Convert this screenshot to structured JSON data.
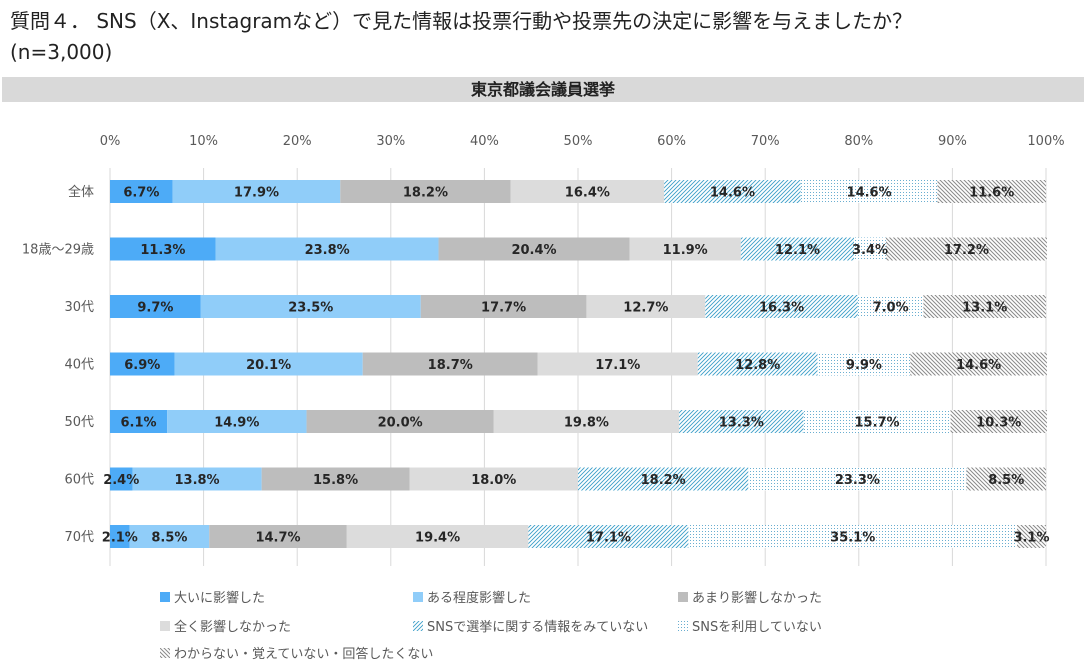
{
  "title_lines": [
    "質問４． SNS（X、Instagramなど）で見た情報は投票行動や投票先の決定に影響を与えましたか？",
    "(n=3,000)"
  ],
  "banner": "東京都議会議員選挙",
  "chart_data": {
    "type": "bar",
    "orientation": "horizontal",
    "stacked": true,
    "percent": true,
    "categories": [
      "全体",
      "18歳～29歳",
      "30代",
      "40代",
      "50代",
      "60代",
      "70代"
    ],
    "series": [
      {
        "name": "大いに影響した",
        "values": [
          6.7,
          11.3,
          9.7,
          6.9,
          6.1,
          2.4,
          2.1
        ]
      },
      {
        "name": "ある程度影響した",
        "values": [
          17.9,
          23.8,
          23.5,
          20.1,
          14.9,
          13.8,
          8.5
        ]
      },
      {
        "name": "あまり影響しなかった",
        "values": [
          18.2,
          20.4,
          17.7,
          18.7,
          20.0,
          15.8,
          14.7
        ]
      },
      {
        "name": "全く影響しなかった",
        "values": [
          16.4,
          11.9,
          12.7,
          17.1,
          19.8,
          18.0,
          19.4
        ]
      },
      {
        "name": "SNSで選挙に関する情報をみていない",
        "values": [
          14.6,
          12.1,
          16.3,
          12.8,
          13.3,
          18.2,
          17.1
        ]
      },
      {
        "name": "SNSを利用していない",
        "values": [
          14.6,
          3.4,
          7.0,
          9.9,
          15.7,
          23.3,
          35.1
        ]
      },
      {
        "name": "わからない・覚えていない・回答したくない",
        "values": [
          11.6,
          17.2,
          13.1,
          14.6,
          10.3,
          8.5,
          3.1
        ]
      }
    ],
    "xlim": [
      0,
      100
    ],
    "xticks": [
      "0%",
      "10%",
      "20%",
      "30%",
      "40%",
      "50%",
      "60%",
      "70%",
      "80%",
      "90%",
      "100%"
    ],
    "value_suffix": "%",
    "grid": true,
    "legend_position": "bottom"
  },
  "colors": {
    "series": [
      "#4dabf7",
      "#90cdf9",
      "#bdbdbd",
      "#dcdcdc",
      "#4fa7c8",
      "#7ab8d6",
      "#9a9a9a"
    ],
    "fills": [
      "solid",
      "solid",
      "solid",
      "solid",
      "diagonal-lines",
      "dots",
      "diagonal-lines"
    ],
    "banner_bg": "#d9d9d9",
    "grid": "#d9d9d9"
  }
}
